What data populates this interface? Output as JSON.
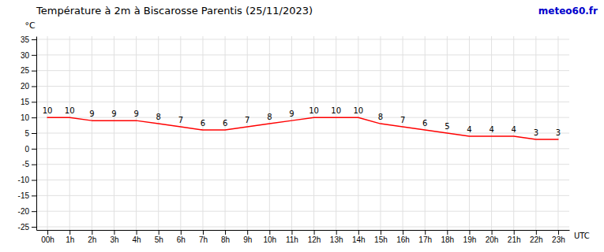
{
  "chart_data": {
    "type": "line",
    "title": "Température à 2m à Biscarosse Parentis (25/11/2023)",
    "x_label": "UTC",
    "y_label": "°C",
    "annotations": [
      {
        "text": "meteo60.fr",
        "color": "#0000cc"
      }
    ],
    "categories": [
      "00h",
      "1h",
      "2h",
      "3h",
      "4h",
      "5h",
      "6h",
      "7h",
      "8h",
      "9h",
      "10h",
      "11h",
      "12h",
      "13h",
      "14h",
      "15h",
      "16h",
      "17h",
      "18h",
      "19h",
      "20h",
      "21h",
      "22h",
      "23h"
    ],
    "values": [
      10,
      10,
      9,
      9,
      9,
      8,
      7,
      6,
      6,
      7,
      8,
      9,
      10,
      10,
      10,
      8,
      7,
      6,
      5,
      4,
      4,
      4,
      3,
      3
    ],
    "color": "#ff0000",
    "ylim": [
      -26,
      36
    ],
    "yticks": [
      -25,
      -20,
      -15,
      -10,
      -5,
      0,
      5,
      10,
      15,
      20,
      25,
      30,
      35
    ],
    "grid": true,
    "data_labels": true
  }
}
